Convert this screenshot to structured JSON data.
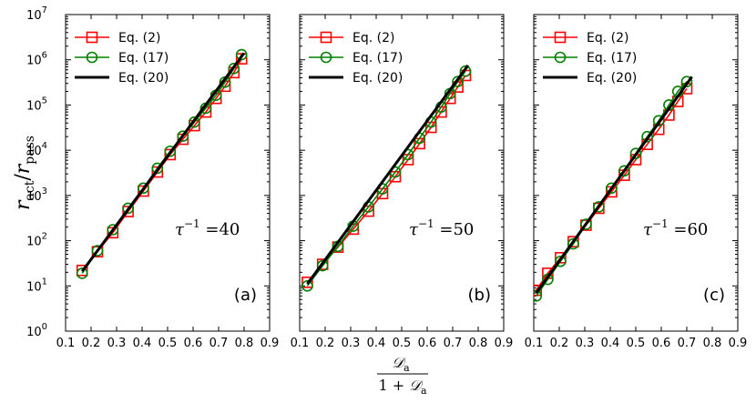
{
  "figure": {
    "ylabel_main": "r",
    "ylabel_sub1": "act",
    "ylabel_slash": "/",
    "ylabel_sub2": "pass",
    "xlabel_num": "𝒟",
    "xlabel_num_sub": "a",
    "xlabel_den_pre": "1 + ",
    "xlabel_den": "𝒟",
    "xlabel_den_sub": "a"
  },
  "axes": {
    "x_ticks": [
      0.1,
      0.2,
      0.3,
      0.4,
      0.5,
      0.6,
      0.7,
      0.8,
      0.9
    ],
    "x_tick_labels": [
      "0.1",
      "0.2",
      "0.3",
      "0.4",
      "0.5",
      "0.6",
      "0.7",
      "0.8",
      "0.9"
    ],
    "y_tick_exponents": [
      0,
      1,
      2,
      3,
      4,
      5,
      6,
      7
    ],
    "y_tick_base": "10",
    "xlim": [
      0.1,
      0.9
    ],
    "ylim_log10": [
      0,
      7
    ]
  },
  "colors": {
    "eq2": "#ff0000",
    "eq17": "#008000",
    "eq20": "#000000"
  },
  "chart_data": [
    {
      "type": "line",
      "panel_label": "(a)",
      "tau_text": "τ",
      "tau_exp": "−1",
      "tau_eq": " =40",
      "xlabel": "D_a/(1+D_a)",
      "ylabel": "r_act/r_pass",
      "yscale": "log",
      "legend": [
        "Eq. (2)",
        "Eq. (17)",
        "Eq. (20)"
      ],
      "legend_position": "top-left",
      "series": [
        {
          "name": "Eq. (2)",
          "marker": "square",
          "x": [
            0.165,
            0.225,
            0.285,
            0.345,
            0.405,
            0.46,
            0.51,
            0.56,
            0.605,
            0.65,
            0.69,
            0.725,
            0.76,
            0.79
          ],
          "y": [
            22,
            57,
            150,
            440,
            1250,
            3300,
            8000,
            17500,
            35000,
            70000,
            140000,
            260000,
            520000,
            1050000
          ]
        },
        {
          "name": "Eq. (17)",
          "marker": "circle",
          "x": [
            0.165,
            0.225,
            0.285,
            0.345,
            0.405,
            0.46,
            0.51,
            0.56,
            0.605,
            0.65,
            0.69,
            0.725,
            0.76,
            0.79
          ],
          "y": [
            19,
            60,
            175,
            520,
            1450,
            4000,
            9500,
            20500,
            42000,
            85000,
            165000,
            320000,
            640000,
            1300000
          ]
        },
        {
          "name": "Eq. (20)",
          "marker": "none",
          "x": [
            0.165,
            0.8
          ],
          "y": [
            21,
            1400000
          ]
        }
      ]
    },
    {
      "type": "line",
      "panel_label": "(b)",
      "tau_text": "τ",
      "tau_exp": "−1",
      "tau_eq": " =50",
      "xlabel": "D_a/(1+D_a)",
      "ylabel": "r_act/r_pass",
      "yscale": "log",
      "legend": [
        "Eq. (2)",
        "Eq. (17)",
        "Eq. (20)"
      ],
      "legend_position": "top-left",
      "series": [
        {
          "name": "Eq. (2)",
          "marker": "square",
          "x": [
            0.13,
            0.19,
            0.25,
            0.31,
            0.37,
            0.425,
            0.475,
            0.525,
            0.57,
            0.615,
            0.655,
            0.69,
            0.72,
            0.75
          ],
          "y": [
            12,
            30,
            72,
            180,
            450,
            1100,
            2600,
            6200,
            14000,
            32000,
            70000,
            140000,
            250000,
            450000
          ]
        },
        {
          "name": "Eq. (17)",
          "marker": "circle",
          "x": [
            0.13,
            0.19,
            0.25,
            0.31,
            0.37,
            0.425,
            0.475,
            0.525,
            0.57,
            0.615,
            0.655,
            0.69,
            0.72,
            0.75
          ],
          "y": [
            10,
            28,
            75,
            210,
            560,
            1400,
            3300,
            8000,
            18500,
            42000,
            90000,
            180000,
            330000,
            560000
          ]
        },
        {
          "name": "Eq. (20)",
          "marker": "none",
          "x": [
            0.13,
            0.76
          ],
          "y": [
            11,
            750000
          ]
        }
      ]
    },
    {
      "type": "line",
      "panel_label": "(c)",
      "tau_text": "τ",
      "tau_exp": "−1",
      "tau_eq": " =60",
      "xlabel": "D_a/(1+D_a)",
      "ylabel": "r_act/r_pass",
      "yscale": "log",
      "legend": [
        "Eq. (2)",
        "Eq. (17)",
        "Eq. (20)"
      ],
      "legend_position": "top-left",
      "series": [
        {
          "name": "Eq. (2)",
          "marker": "square",
          "x": [
            0.11,
            0.155,
            0.205,
            0.255,
            0.305,
            0.355,
            0.405,
            0.455,
            0.5,
            0.545,
            0.59,
            0.63,
            0.665,
            0.7
          ],
          "y": [
            8,
            19,
            42,
            95,
            220,
            520,
            1200,
            2800,
            6200,
            13500,
            29000,
            60000,
            120000,
            230000
          ]
        },
        {
          "name": "Eq. (17)",
          "marker": "circle",
          "x": [
            0.11,
            0.155,
            0.205,
            0.255,
            0.305,
            0.355,
            0.405,
            0.455,
            0.5,
            0.545,
            0.59,
            0.63,
            0.665,
            0.7
          ],
          "y": [
            6,
            14,
            35,
            85,
            230,
            560,
            1450,
            3500,
            8500,
            20000,
            45000,
            100000,
            200000,
            330000
          ]
        },
        {
          "name": "Eq. (20)",
          "marker": "none",
          "x": [
            0.11,
            0.72
          ],
          "y": [
            7,
            420000
          ]
        }
      ]
    }
  ]
}
